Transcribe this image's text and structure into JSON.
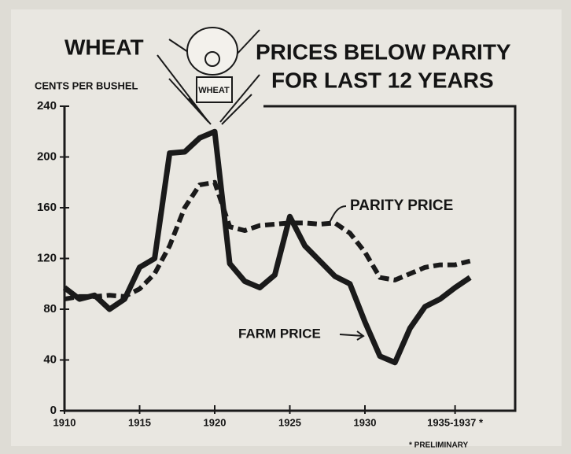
{
  "chart_data": {
    "type": "line",
    "title": "WHEAT",
    "subtitle_lines": [
      "PRICES BELOW PARITY",
      "FOR LAST 12 YEARS"
    ],
    "icon_label": "WHEAT",
    "y_label": "CENTS PER BUSHEL",
    "footnote": "* PRELIMINARY",
    "x": [
      1910,
      1911,
      1912,
      1913,
      1914,
      1915,
      1916,
      1917,
      1918,
      1919,
      1920,
      1921,
      1922,
      1923,
      1924,
      1925,
      1926,
      1927,
      1928,
      1929,
      1930,
      1931,
      1932,
      1933,
      1934,
      1935,
      1936,
      1937
    ],
    "series": [
      {
        "name": "FARM PRICE",
        "color": "#1a1a1a",
        "line_style": "solid",
        "values": [
          97,
          88,
          91,
          80,
          88,
          113,
          120,
          203,
          204,
          215,
          220,
          116,
          102,
          97,
          107,
          153,
          130,
          118,
          106,
          100,
          70,
          43,
          38,
          65,
          82,
          88,
          97,
          105
        ]
      },
      {
        "name": "PARITY PRICE",
        "color": "#1a1a1a",
        "line_style": "dashed",
        "values": [
          88,
          90,
          90,
          91,
          90,
          96,
          108,
          130,
          160,
          178,
          180,
          145,
          142,
          146,
          147,
          148,
          148,
          147,
          148,
          140,
          125,
          105,
          103,
          108,
          113,
          115,
          115,
          118
        ]
      }
    ],
    "xlim": [
      1910,
      1940
    ],
    "xticks": [
      1910,
      1915,
      1920,
      1925,
      1930,
      {
        "value": 1936,
        "label": "1935-1937 *"
      }
    ],
    "ylim": [
      0,
      240
    ],
    "yticks": [
      0,
      40,
      80,
      120,
      160,
      200,
      240
    ]
  }
}
